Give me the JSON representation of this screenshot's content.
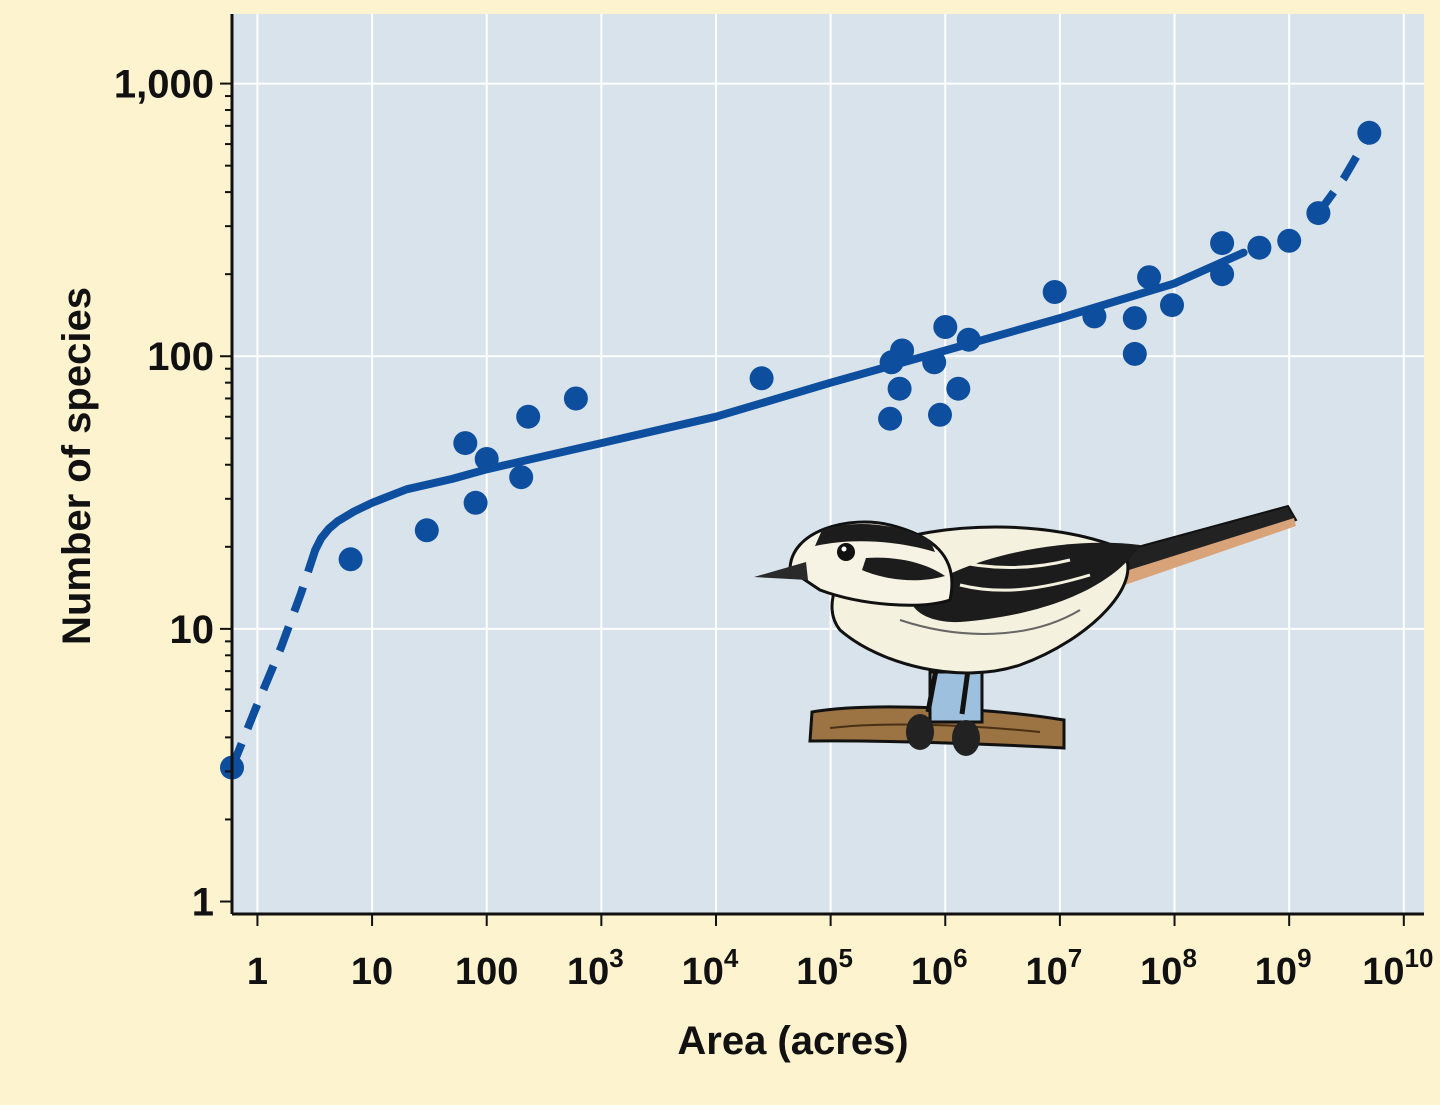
{
  "colors": {
    "outer_background": "#fdf3cf",
    "plot_background": "#d8e3ec",
    "gridline": "#ffffff",
    "series": "#0d4e9f",
    "axis": "#111111"
  },
  "chart_data": {
    "type": "scatter",
    "xlabel": "Area (acres)",
    "ylabel": "Number of species",
    "x_scale": "log",
    "y_scale": "log",
    "xlim": [
      0.6,
      15000000000
    ],
    "ylim": [
      0.9,
      1800
    ],
    "grid": true,
    "x_ticks": [
      {
        "value": 1,
        "base": "1",
        "exp": ""
      },
      {
        "value": 10,
        "base": "10",
        "exp": ""
      },
      {
        "value": 100,
        "base": "100",
        "exp": ""
      },
      {
        "value": 1000,
        "base": "10",
        "exp": "3"
      },
      {
        "value": 10000,
        "base": "10",
        "exp": "4"
      },
      {
        "value": 100000,
        "base": "10",
        "exp": "5"
      },
      {
        "value": 1000000,
        "base": "10",
        "exp": "6"
      },
      {
        "value": 10000000,
        "base": "10",
        "exp": "7"
      },
      {
        "value": 100000000,
        "base": "10",
        "exp": "8"
      },
      {
        "value": 1000000000,
        "base": "10",
        "exp": "9"
      },
      {
        "value": 10000000000,
        "base": "10",
        "exp": "10"
      }
    ],
    "y_ticks": [
      {
        "value": 1,
        "label": "1"
      },
      {
        "value": 10,
        "label": "10"
      },
      {
        "value": 100,
        "label": "100"
      },
      {
        "value": 1000,
        "label": "1,000"
      }
    ],
    "points": [
      {
        "x": 0.6,
        "y": 3.1
      },
      {
        "x": 6.5,
        "y": 18
      },
      {
        "x": 30,
        "y": 23
      },
      {
        "x": 65,
        "y": 48
      },
      {
        "x": 80,
        "y": 29
      },
      {
        "x": 100,
        "y": 42
      },
      {
        "x": 200,
        "y": 36
      },
      {
        "x": 230,
        "y": 60
      },
      {
        "x": 600,
        "y": 70
      },
      {
        "x": 25000,
        "y": 83
      },
      {
        "x": 330000,
        "y": 59
      },
      {
        "x": 340000,
        "y": 95
      },
      {
        "x": 400000,
        "y": 76
      },
      {
        "x": 420000,
        "y": 105
      },
      {
        "x": 800000,
        "y": 95
      },
      {
        "x": 900000,
        "y": 61
      },
      {
        "x": 1000000,
        "y": 128
      },
      {
        "x": 1300000,
        "y": 76
      },
      {
        "x": 1600000,
        "y": 115
      },
      {
        "x": 9000000,
        "y": 172
      },
      {
        "x": 20000000,
        "y": 140
      },
      {
        "x": 45000000,
        "y": 102
      },
      {
        "x": 45000000,
        "y": 138
      },
      {
        "x": 60000000,
        "y": 195
      },
      {
        "x": 95000000,
        "y": 154
      },
      {
        "x": 260000000,
        "y": 200
      },
      {
        "x": 260000000,
        "y": 260
      },
      {
        "x": 550000000,
        "y": 250
      },
      {
        "x": 1000000000,
        "y": 265
      },
      {
        "x": 1800000000,
        "y": 335
      },
      {
        "x": 5000000000,
        "y": 660
      }
    ],
    "fit_solid": [
      {
        "x": 3.2,
        "y": 19.5
      },
      {
        "x": 3.6,
        "y": 21.5
      },
      {
        "x": 4.2,
        "y": 23.3
      },
      {
        "x": 5,
        "y": 24.8
      },
      {
        "x": 7,
        "y": 27
      },
      {
        "x": 10,
        "y": 29
      },
      {
        "x": 20,
        "y": 32.5
      },
      {
        "x": 50,
        "y": 35.5
      },
      {
        "x": 100,
        "y": 38.5
      },
      {
        "x": 1000,
        "y": 48
      },
      {
        "x": 10000,
        "y": 60
      },
      {
        "x": 100000,
        "y": 80
      },
      {
        "x": 1000000,
        "y": 105
      },
      {
        "x": 10000000,
        "y": 138
      },
      {
        "x": 100000000,
        "y": 185
      },
      {
        "x": 400000000,
        "y": 240
      }
    ],
    "fit_dashed_low": [
      {
        "x": 0.6,
        "y": 3.1
      },
      {
        "x": 1,
        "y": 5.3
      },
      {
        "x": 1.6,
        "y": 8.5
      },
      {
        "x": 2.4,
        "y": 13.5
      },
      {
        "x": 3.2,
        "y": 19.5
      }
    ],
    "fit_dashed_high": [
      {
        "x": 1800000000,
        "y": 335
      },
      {
        "x": 3000000000,
        "y": 450
      },
      {
        "x": 5000000000,
        "y": 650
      }
    ]
  }
}
